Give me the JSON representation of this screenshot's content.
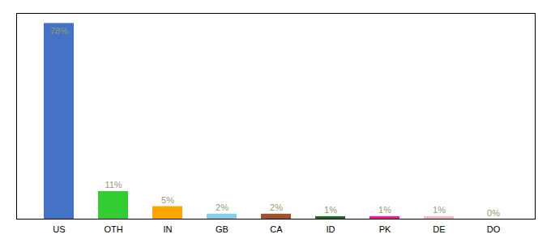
{
  "chart_data": {
    "type": "bar",
    "categories": [
      "US",
      "OTH",
      "IN",
      "GB",
      "CA",
      "ID",
      "PK",
      "DE",
      "DO"
    ],
    "values": [
      78,
      11,
      5,
      2,
      2,
      1,
      1,
      1,
      0
    ],
    "value_labels": [
      "78%",
      "11%",
      "5%",
      "2%",
      "2%",
      "1%",
      "1%",
      "1%",
      "0%"
    ],
    "colors": [
      "#4472C4",
      "#33CC33",
      "#FFA500",
      "#87CEEB",
      "#A0522D",
      "#1B6B1B",
      "#FF1493",
      "#FFB6C1",
      "#FF69B4"
    ],
    "data_labels": true,
    "ylim": [
      0,
      82
    ],
    "tick_labels": "x"
  }
}
